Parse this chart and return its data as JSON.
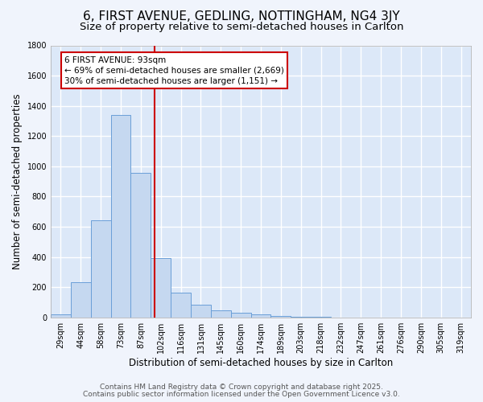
{
  "title_line1": "6, FIRST AVENUE, GEDLING, NOTTINGHAM, NG4 3JY",
  "title_line2": "Size of property relative to semi-detached houses in Carlton",
  "xlabel": "Distribution of semi-detached houses by size in Carlton",
  "ylabel": "Number of semi-detached properties",
  "bin_labels": [
    "29sqm",
    "44sqm",
    "58sqm",
    "73sqm",
    "87sqm",
    "102sqm",
    "116sqm",
    "131sqm",
    "145sqm",
    "160sqm",
    "174sqm",
    "189sqm",
    "203sqm",
    "218sqm",
    "232sqm",
    "247sqm",
    "261sqm",
    "276sqm",
    "290sqm",
    "305sqm",
    "319sqm"
  ],
  "bar_values": [
    20,
    230,
    645,
    1340,
    955,
    390,
    165,
    85,
    47,
    30,
    18,
    8,
    3,
    2,
    1,
    1,
    0,
    0,
    0,
    0,
    0
  ],
  "bar_color": "#c5d8f0",
  "bar_edge_color": "#6a9fd8",
  "background_color": "#dce8f8",
  "grid_color": "#ffffff",
  "vline_x": 4.7,
  "vline_color": "#cc0000",
  "annotation_text": "6 FIRST AVENUE: 93sqm\n← 69% of semi-detached houses are smaller (2,669)\n30% of semi-detached houses are larger (1,151) →",
  "annotation_box_color": "#ffffff",
  "annotation_box_edge": "#cc0000",
  "ylim": [
    0,
    1800
  ],
  "yticks": [
    0,
    200,
    400,
    600,
    800,
    1000,
    1200,
    1400,
    1600,
    1800
  ],
  "footer_line1": "Contains HM Land Registry data © Crown copyright and database right 2025.",
  "footer_line2": "Contains public sector information licensed under the Open Government Licence v3.0.",
  "title_fontsize": 11,
  "subtitle_fontsize": 9.5,
  "axis_label_fontsize": 8.5,
  "tick_fontsize": 7.0,
  "annotation_fontsize": 7.5,
  "footer_fontsize": 6.5
}
